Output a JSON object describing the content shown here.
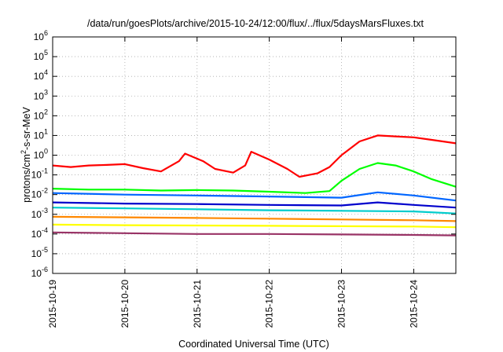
{
  "chart_data": {
    "type": "line",
    "title": "/data/run/goesPlots/archive/2015-10-24/12:00/flux/../flux/5daysMarsFluxes.txt",
    "xlabel": "Coordinated Universal Time (UTC)",
    "ylabel": {
      "base": "protons/cm",
      "sup": "2",
      "rest": "-s-sr-MeV"
    },
    "y_scale": "log",
    "ylim": [
      1e-06,
      1000000.0
    ],
    "y_ticks": [
      {
        "exp": "-6"
      },
      {
        "exp": "-5"
      },
      {
        "exp": "-4"
      },
      {
        "exp": "-3"
      },
      {
        "exp": "-2"
      },
      {
        "exp": "-1"
      },
      {
        "exp": "0"
      },
      {
        "exp": "1"
      },
      {
        "exp": "2"
      },
      {
        "exp": "3"
      },
      {
        "exp": "4"
      },
      {
        "exp": "5"
      },
      {
        "exp": "6"
      }
    ],
    "xlim": [
      "2015-10-19 00:00",
      "2015-10-24 14:00"
    ],
    "x_ticks": [
      "2015-10-19",
      "2015-10-20",
      "2015-10-21",
      "2015-10-22",
      "2015-10-23",
      "2015-10-24"
    ],
    "grid": true,
    "legend": "none",
    "series": [
      {
        "color": "#ff0000",
        "points": [
          [
            "2015-10-19 00:00",
            0.3
          ],
          [
            "2015-10-19 06:00",
            0.25
          ],
          [
            "2015-10-19 12:00",
            0.3
          ],
          [
            "2015-10-19 18:00",
            0.32
          ],
          [
            "2015-10-20 00:00",
            0.35
          ],
          [
            "2015-10-20 06:00",
            0.22
          ],
          [
            "2015-10-20 12:00",
            0.15
          ],
          [
            "2015-10-20 18:00",
            0.5
          ],
          [
            "2015-10-20 20:00",
            1.2
          ],
          [
            "2015-10-21 02:00",
            0.5
          ],
          [
            "2015-10-21 06:00",
            0.2
          ],
          [
            "2015-10-21 12:00",
            0.13
          ],
          [
            "2015-10-21 16:00",
            0.3
          ],
          [
            "2015-10-21 18:00",
            1.5
          ],
          [
            "2015-10-22 00:00",
            0.6
          ],
          [
            "2015-10-22 06:00",
            0.2
          ],
          [
            "2015-10-22 10:00",
            0.08
          ],
          [
            "2015-10-22 16:00",
            0.12
          ],
          [
            "2015-10-22 20:00",
            0.25
          ],
          [
            "2015-10-23 00:00",
            1.0
          ],
          [
            "2015-10-23 06:00",
            5.0
          ],
          [
            "2015-10-23 12:00",
            10.0
          ],
          [
            "2015-10-23 18:00",
            9.0
          ],
          [
            "2015-10-24 00:00",
            8.0
          ],
          [
            "2015-10-24 06:00",
            6.0
          ],
          [
            "2015-10-24 14:00",
            4.0
          ]
        ]
      },
      {
        "color": "#00ff00",
        "points": [
          [
            "2015-10-19 00:00",
            0.02
          ],
          [
            "2015-10-19 12:00",
            0.018
          ],
          [
            "2015-10-20 00:00",
            0.018
          ],
          [
            "2015-10-20 12:00",
            0.016
          ],
          [
            "2015-10-21 00:00",
            0.017
          ],
          [
            "2015-10-21 12:00",
            0.016
          ],
          [
            "2015-10-22 00:00",
            0.014
          ],
          [
            "2015-10-22 12:00",
            0.012
          ],
          [
            "2015-10-22 20:00",
            0.015
          ],
          [
            "2015-10-23 00:00",
            0.05
          ],
          [
            "2015-10-23 06:00",
            0.2
          ],
          [
            "2015-10-23 12:00",
            0.4
          ],
          [
            "2015-10-23 18:00",
            0.3
          ],
          [
            "2015-10-24 00:00",
            0.15
          ],
          [
            "2015-10-24 06:00",
            0.06
          ],
          [
            "2015-10-24 14:00",
            0.025
          ]
        ]
      },
      {
        "color": "#0066ff",
        "points": [
          [
            "2015-10-19 00:00",
            0.012
          ],
          [
            "2015-10-20 00:00",
            0.01
          ],
          [
            "2015-10-21 00:00",
            0.009
          ],
          [
            "2015-10-22 00:00",
            0.008
          ],
          [
            "2015-10-23 00:00",
            0.007
          ],
          [
            "2015-10-23 12:00",
            0.013
          ],
          [
            "2015-10-24 00:00",
            0.009
          ],
          [
            "2015-10-24 14:00",
            0.005
          ]
        ]
      },
      {
        "color": "#0000cc",
        "points": [
          [
            "2015-10-19 00:00",
            0.004
          ],
          [
            "2015-10-20 00:00",
            0.0035
          ],
          [
            "2015-10-21 00:00",
            0.0033
          ],
          [
            "2015-10-22 00:00",
            0.003
          ],
          [
            "2015-10-23 00:00",
            0.0028
          ],
          [
            "2015-10-23 12:00",
            0.004
          ],
          [
            "2015-10-24 00:00",
            0.003
          ],
          [
            "2015-10-24 14:00",
            0.0022
          ]
        ]
      },
      {
        "color": "#00cccc",
        "points": [
          [
            "2015-10-19 00:00",
            0.0022
          ],
          [
            "2015-10-20 00:00",
            0.002
          ],
          [
            "2015-10-21 00:00",
            0.0018
          ],
          [
            "2015-10-22 00:00",
            0.0016
          ],
          [
            "2015-10-23 00:00",
            0.0015
          ],
          [
            "2015-10-24 00:00",
            0.0014
          ],
          [
            "2015-10-24 14:00",
            0.0011
          ]
        ]
      },
      {
        "color": "#ff8800",
        "points": [
          [
            "2015-10-19 00:00",
            0.00075
          ],
          [
            "2015-10-20 00:00",
            0.0007
          ],
          [
            "2015-10-21 00:00",
            0.00065
          ],
          [
            "2015-10-22 00:00",
            0.0006
          ],
          [
            "2015-10-23 00:00",
            0.00055
          ],
          [
            "2015-10-24 00:00",
            0.0005
          ],
          [
            "2015-10-24 14:00",
            0.00045
          ]
        ]
      },
      {
        "color": "#ffff00",
        "points": [
          [
            "2015-10-19 00:00",
            0.0003
          ],
          [
            "2015-10-20 00:00",
            0.00028
          ],
          [
            "2015-10-21 00:00",
            0.00027
          ],
          [
            "2015-10-22 00:00",
            0.00026
          ],
          [
            "2015-10-23 00:00",
            0.00025
          ],
          [
            "2015-10-24 00:00",
            0.00024
          ],
          [
            "2015-10-24 14:00",
            0.00022
          ]
        ]
      },
      {
        "color": "#993366",
        "points": [
          [
            "2015-10-19 00:00",
            0.00012
          ],
          [
            "2015-10-20 00:00",
            0.00011
          ],
          [
            "2015-10-21 00:00",
            0.0001
          ],
          [
            "2015-10-22 00:00",
            0.0001
          ],
          [
            "2015-10-23 00:00",
            9.5e-05
          ],
          [
            "2015-10-24 00:00",
            9e-05
          ],
          [
            "2015-10-24 14:00",
            8.5e-05
          ]
        ]
      }
    ]
  }
}
